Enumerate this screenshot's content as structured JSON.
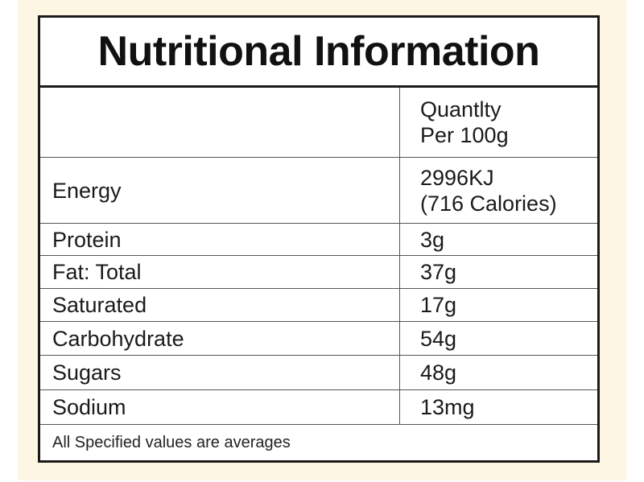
{
  "title": "Nutritional Information",
  "header": {
    "label": "",
    "value_line1": "Quantlty",
    "value_line2": "Per 100g"
  },
  "energy": {
    "label": "Energy",
    "value_line1": "2996KJ",
    "value_line2": "(716 Calories)"
  },
  "rows": [
    {
      "label": "Protein",
      "value": "3g"
    },
    {
      "label": "Fat: Total",
      "value": "37g"
    },
    {
      "label": "Saturated",
      "value": "17g"
    },
    {
      "label": "Carbohydrate",
      "value": "54g"
    },
    {
      "label": "Sugars",
      "value": "48g"
    },
    {
      "label": "Sodium",
      "value": "13mg"
    }
  ],
  "footer": "All Specified values are averages",
  "colors": {
    "border": "#1a1a1a",
    "backdrop": "#fdf6e3",
    "panel": "#ffffff"
  }
}
